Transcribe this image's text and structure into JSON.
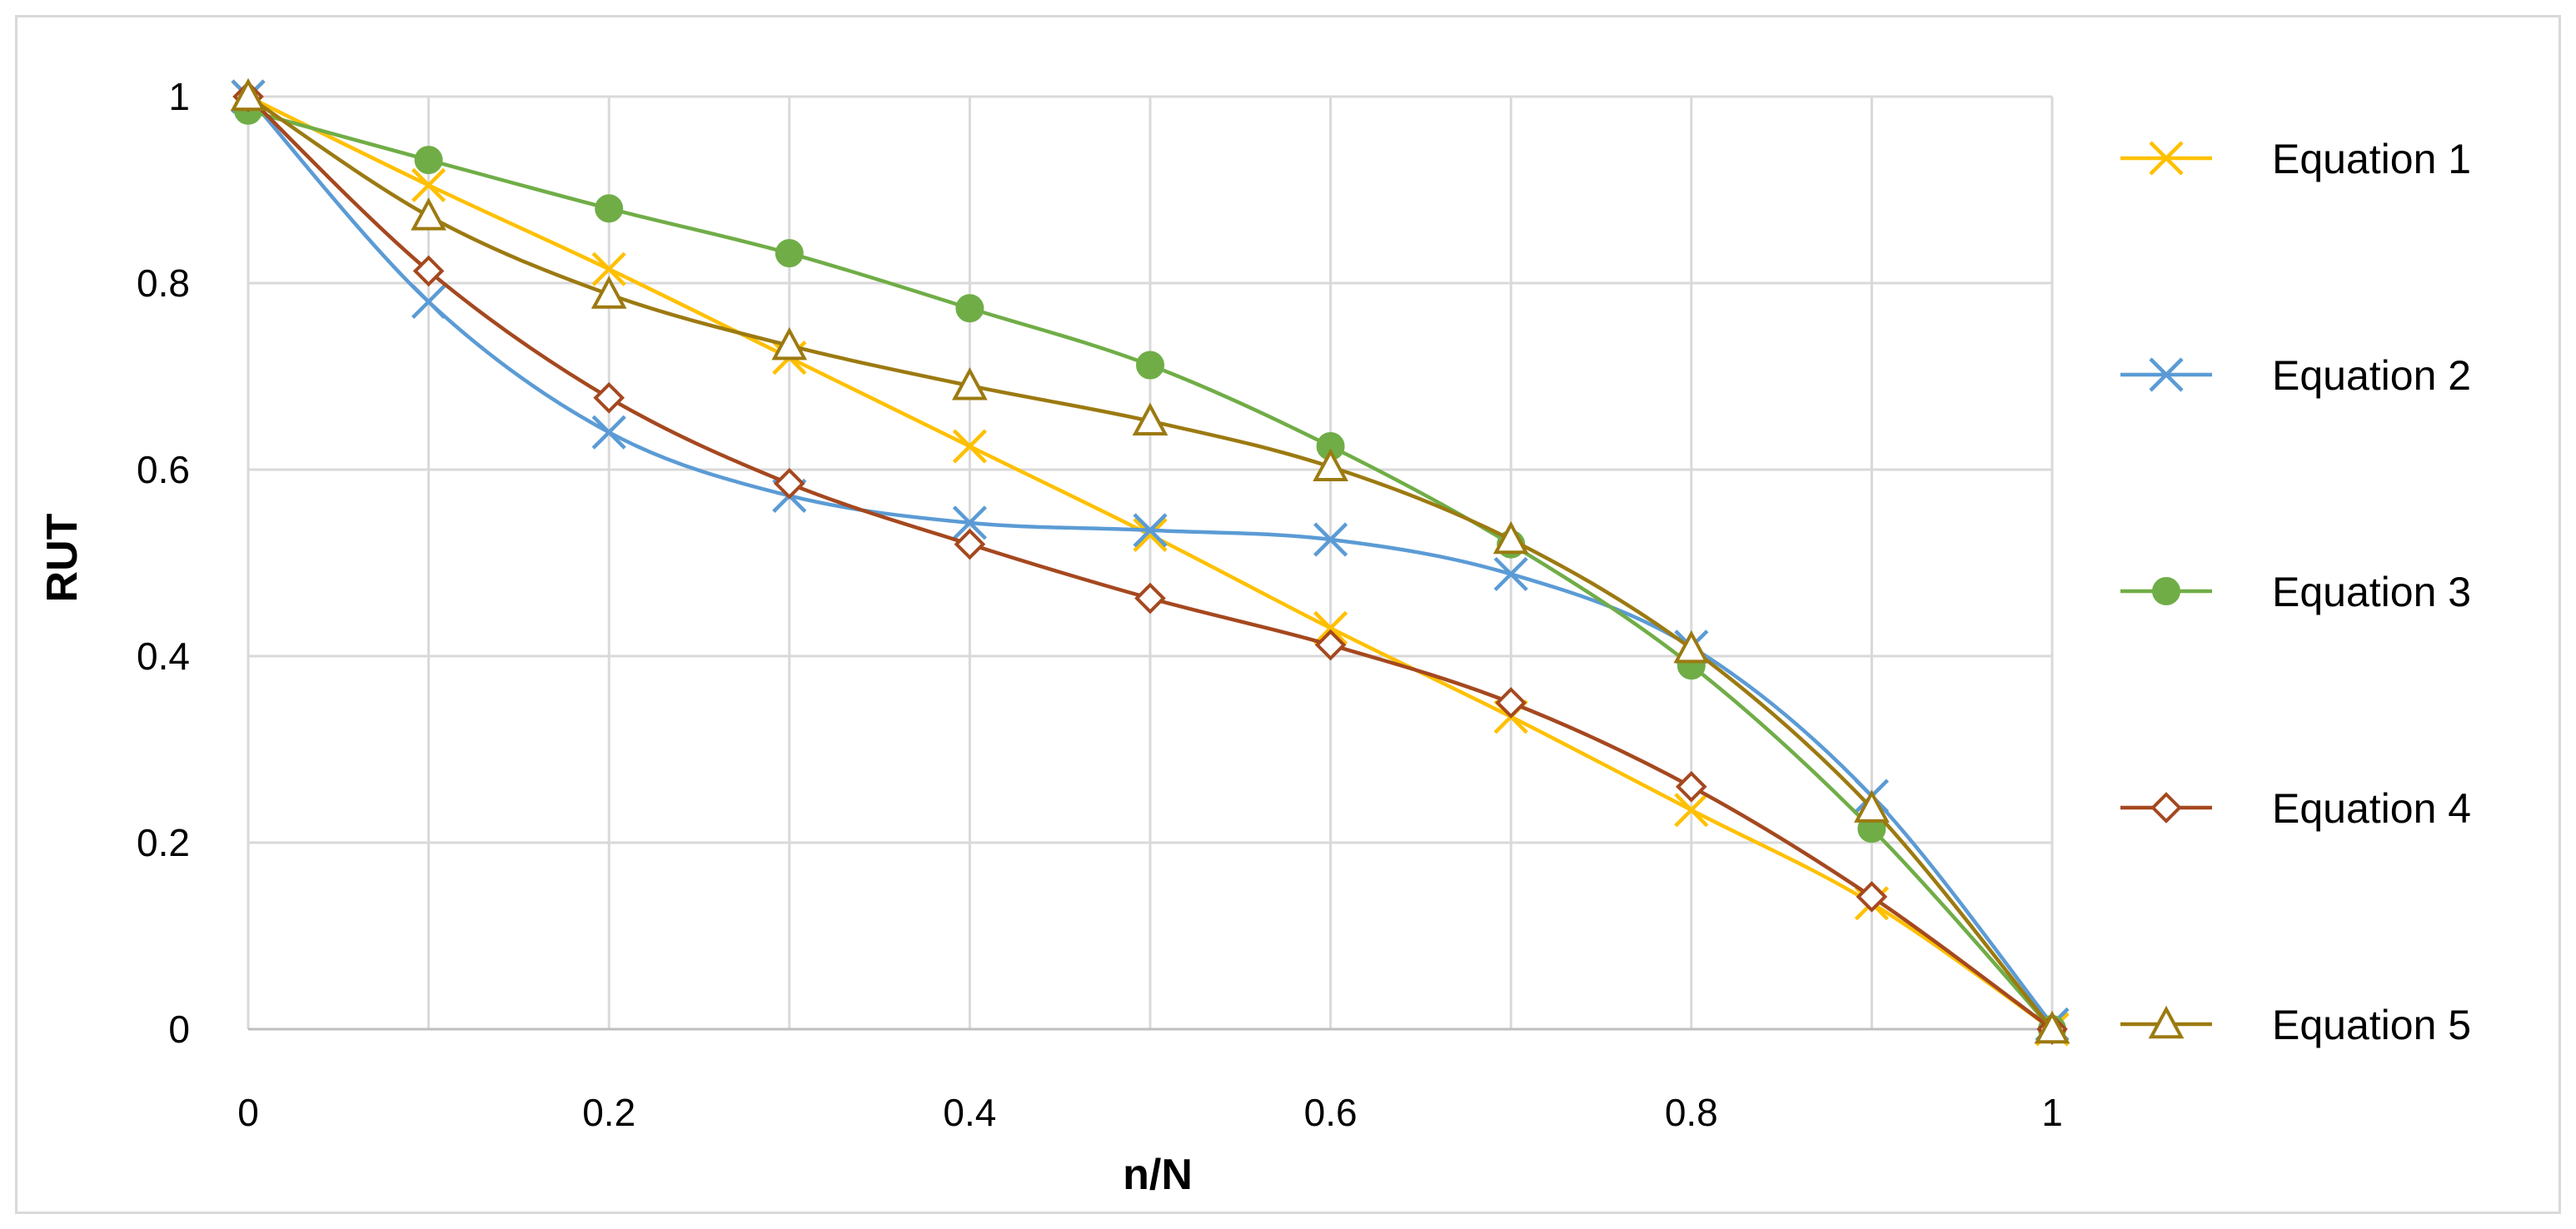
{
  "chart_data": {
    "type": "line",
    "title": "",
    "xlabel": "n/N",
    "ylabel": "RUT",
    "xlim": [
      0,
      1
    ],
    "ylim": [
      0,
      1
    ],
    "x_ticks": [
      "0",
      "0.2",
      "0.4",
      "0.6",
      "0.8",
      "1"
    ],
    "y_ticks": [
      "0",
      "0.2",
      "0.4",
      "0.6",
      "0.8",
      "1"
    ],
    "x_tick_values": [
      0,
      0.2,
      0.4,
      0.6,
      0.8,
      1
    ],
    "y_tick_values": [
      0,
      0.2,
      0.4,
      0.6,
      0.8,
      1
    ],
    "x_minor_grid": [
      0.1,
      0.3,
      0.5,
      0.7,
      0.9
    ],
    "grid": true,
    "smooth": true,
    "legend_position": "right",
    "x": [
      0,
      0.1,
      0.2,
      0.3,
      0.4,
      0.5,
      0.6,
      0.7,
      0.8,
      0.9,
      1
    ],
    "series": [
      {
        "name": "Equation 1",
        "color": "#FFC000",
        "marker": "x",
        "values": [
          1,
          0.905,
          0.815,
          0.72,
          0.625,
          0.53,
          0.43,
          0.335,
          0.235,
          0.135,
          0
        ]
      },
      {
        "name": "Equation 2",
        "color": "#5B9BD5",
        "marker": "x",
        "values": [
          1,
          0.78,
          0.64,
          0.572,
          0.543,
          0.535,
          0.525,
          0.488,
          0.41,
          0.25,
          0.005
        ]
      },
      {
        "name": "Equation 3",
        "color": "#70AD47",
        "marker": "circle",
        "values": [
          0.985,
          0.932,
          0.88,
          0.832,
          0.773,
          0.712,
          0.625,
          0.52,
          0.39,
          0.215,
          0
        ]
      },
      {
        "name": "Equation 4",
        "color": "#A5481F",
        "marker": "diamond",
        "values": [
          1,
          0.813,
          0.677,
          0.585,
          0.52,
          0.462,
          0.412,
          0.35,
          0.26,
          0.142,
          0
        ]
      },
      {
        "name": "Equation 5",
        "color": "#9C7A11",
        "marker": "triangle",
        "values": [
          1,
          0.872,
          0.788,
          0.733,
          0.69,
          0.652,
          0.603,
          0.525,
          0.408,
          0.237,
          0
        ]
      }
    ]
  }
}
